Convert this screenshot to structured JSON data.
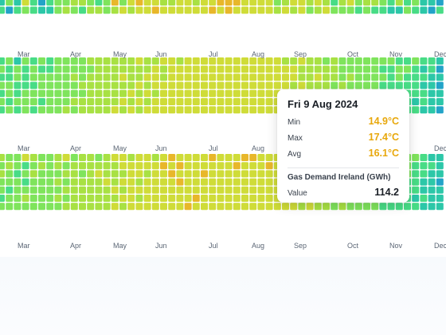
{
  "chart_data": {
    "type": "heatmap",
    "months": [
      "Mar",
      "Apr",
      "May",
      "Jun",
      "Jul",
      "Aug",
      "Sep",
      "Oct",
      "Nov",
      "Dec"
    ],
    "bands": [
      {
        "label_row": 0,
        "values": [
          [
            2,
            4,
            2,
            6,
            3,
            1,
            3,
            4,
            4,
            5,
            5,
            4,
            3,
            4,
            7,
            4,
            6,
            7,
            6,
            6,
            5,
            5,
            6,
            6,
            5,
            6,
            6,
            7,
            7,
            7,
            6,
            6,
            6,
            6,
            4,
            5,
            6,
            6,
            5,
            6,
            5,
            3,
            5,
            6,
            4,
            5,
            5,
            4,
            3,
            5,
            3,
            4,
            2,
            2,
            1
          ],
          [
            3,
            1,
            3,
            4,
            3,
            2,
            2,
            4,
            5,
            4,
            3,
            5,
            5,
            4,
            5,
            6,
            5,
            6,
            6,
            7,
            6,
            6,
            6,
            6,
            6,
            6,
            7,
            6,
            7,
            6,
            6,
            6,
            6,
            6,
            5,
            6,
            5,
            6,
            4,
            5,
            6,
            4,
            4,
            4,
            3,
            4,
            3,
            3,
            2,
            2,
            4,
            3,
            2,
            1,
            3
          ]
        ]
      },
      {
        "label_row": 1,
        "values": [
          [
            3,
            4,
            2,
            4,
            3,
            4,
            3,
            4,
            4,
            4,
            4,
            5,
            5,
            5,
            5,
            5,
            5,
            6,
            5,
            5,
            6,
            6,
            5,
            6,
            6,
            6,
            6,
            6,
            6,
            6,
            6,
            6,
            6,
            6,
            6,
            5,
            5,
            6,
            5,
            5,
            4,
            5,
            4,
            4,
            4,
            4,
            4,
            4,
            4,
            3,
            3,
            4,
            3,
            3,
            2
          ],
          [
            4,
            3,
            4,
            3,
            4,
            3,
            3,
            4,
            4,
            4,
            4,
            4,
            5,
            5,
            5,
            5,
            5,
            5,
            5,
            6,
            5,
            6,
            6,
            6,
            6,
            6,
            6,
            6,
            6,
            6,
            6,
            6,
            6,
            6,
            6,
            6,
            6,
            5,
            5,
            5,
            5,
            5,
            4,
            4,
            4,
            4,
            4,
            3,
            3,
            4,
            4,
            3,
            2,
            3,
            1
          ],
          [
            3,
            3,
            4,
            3,
            4,
            4,
            4,
            4,
            4,
            5,
            4,
            5,
            5,
            5,
            5,
            6,
            5,
            5,
            6,
            6,
            5,
            6,
            6,
            6,
            6,
            6,
            6,
            6,
            6,
            6,
            6,
            6,
            6,
            6,
            6,
            6,
            6,
            5,
            5,
            6,
            5,
            5,
            4,
            5,
            4,
            4,
            4,
            4,
            3,
            4,
            3,
            3,
            3,
            2,
            2
          ],
          [
            4,
            4,
            3,
            3,
            3,
            4,
            4,
            4,
            4,
            4,
            5,
            5,
            5,
            5,
            5,
            5,
            5,
            6,
            5,
            6,
            6,
            6,
            6,
            6,
            6,
            6,
            6,
            6,
            6,
            6,
            6,
            6,
            6,
            6,
            6,
            6,
            5,
            6,
            5,
            5,
            5,
            4,
            5,
            4,
            4,
            4,
            4,
            3,
            3,
            3,
            3,
            3,
            2,
            2,
            1
          ],
          [
            3,
            4,
            3,
            4,
            4,
            4,
            4,
            4,
            4,
            4,
            4,
            5,
            5,
            5,
            5,
            5,
            6,
            5,
            6,
            5,
            6,
            6,
            6,
            6,
            6,
            6,
            6,
            6,
            6,
            6,
            6,
            6,
            6,
            6,
            6,
            6,
            6,
            5,
            5,
            5,
            5,
            5,
            4,
            4,
            4,
            4,
            3,
            4,
            3,
            3,
            3,
            3,
            3,
            2,
            2
          ],
          [
            4,
            3,
            4,
            4,
            4,
            3,
            4,
            4,
            4,
            5,
            5,
            5,
            5,
            5,
            5,
            6,
            5,
            6,
            5,
            6,
            6,
            6,
            6,
            6,
            6,
            6,
            6,
            6,
            6,
            6,
            6,
            6,
            6,
            6,
            6,
            6,
            5,
            6,
            5,
            5,
            5,
            4,
            5,
            4,
            4,
            4,
            4,
            3,
            4,
            3,
            3,
            2,
            3,
            2,
            2
          ],
          [
            3,
            4,
            3,
            4,
            3,
            4,
            4,
            4,
            5,
            4,
            5,
            5,
            5,
            5,
            6,
            5,
            6,
            5,
            6,
            6,
            6,
            6,
            6,
            6,
            6,
            6,
            6,
            6,
            6,
            6,
            6,
            6,
            6,
            6,
            6,
            6,
            6,
            5,
            5,
            5,
            5,
            5,
            4,
            4,
            4,
            4,
            3,
            3,
            3,
            4,
            3,
            3,
            2,
            2,
            1
          ]
        ]
      },
      {
        "label_row": 2,
        "values": [
          [
            5,
            4,
            4,
            6,
            5,
            4,
            4,
            5,
            6,
            4,
            5,
            5,
            4,
            5,
            6,
            6,
            5,
            6,
            6,
            5,
            6,
            7,
            6,
            6,
            6,
            6,
            7,
            6,
            6,
            6,
            7,
            7,
            6,
            6,
            6,
            6,
            6,
            6,
            6,
            5,
            6,
            5,
            5,
            5,
            5,
            4,
            5,
            4,
            4,
            3,
            4,
            4,
            3,
            2,
            2
          ],
          [
            4,
            5,
            4,
            3,
            4,
            5,
            4,
            5,
            4,
            5,
            5,
            5,
            5,
            5,
            5,
            6,
            6,
            6,
            6,
            6,
            7,
            6,
            7,
            6,
            6,
            6,
            6,
            6,
            6,
            7,
            6,
            6,
            6,
            7,
            6,
            6,
            6,
            6,
            5,
            6,
            5,
            5,
            5,
            4,
            5,
            4,
            5,
            4,
            4,
            4,
            4,
            3,
            3,
            3,
            2
          ],
          [
            5,
            4,
            3,
            4,
            5,
            4,
            4,
            4,
            5,
            5,
            4,
            5,
            6,
            5,
            5,
            5,
            6,
            6,
            5,
            6,
            6,
            7,
            6,
            6,
            6,
            7,
            6,
            6,
            6,
            6,
            6,
            6,
            6,
            6,
            6,
            6,
            6,
            5,
            6,
            5,
            5,
            5,
            5,
            4,
            4,
            4,
            4,
            4,
            4,
            3,
            4,
            3,
            3,
            2,
            2
          ],
          [
            4,
            4,
            4,
            3,
            4,
            4,
            4,
            5,
            4,
            5,
            5,
            5,
            5,
            6,
            5,
            6,
            6,
            5,
            6,
            6,
            6,
            6,
            7,
            6,
            6,
            6,
            6,
            6,
            6,
            6,
            6,
            6,
            6,
            6,
            6,
            6,
            6,
            6,
            5,
            5,
            5,
            5,
            4,
            5,
            4,
            4,
            4,
            3,
            4,
            4,
            3,
            3,
            2,
            2,
            1
          ],
          [
            4,
            3,
            4,
            4,
            4,
            4,
            4,
            4,
            5,
            5,
            5,
            5,
            5,
            5,
            6,
            5,
            6,
            6,
            6,
            6,
            6,
            6,
            6,
            6,
            6,
            6,
            6,
            6,
            6,
            6,
            6,
            6,
            6,
            6,
            6,
            6,
            5,
            6,
            5,
            5,
            5,
            5,
            4,
            4,
            4,
            4,
            4,
            4,
            3,
            3,
            3,
            3,
            2,
            2,
            2
          ],
          [
            3,
            4,
            4,
            5,
            4,
            4,
            4,
            5,
            4,
            5,
            5,
            5,
            5,
            5,
            5,
            6,
            6,
            5,
            6,
            6,
            6,
            6,
            6,
            6,
            7,
            6,
            6,
            6,
            6,
            6,
            6,
            6,
            6,
            6,
            6,
            6,
            6,
            5,
            5,
            5,
            5,
            5,
            4,
            5,
            4,
            4,
            3,
            4,
            4,
            3,
            3,
            2,
            3,
            2,
            2
          ],
          [
            4,
            4,
            4,
            4,
            4,
            4,
            4,
            4,
            5,
            5,
            5,
            5,
            5,
            5,
            6,
            5,
            6,
            6,
            6,
            6,
            6,
            6,
            6,
            7,
            6,
            6,
            6,
            6,
            6,
            6,
            6,
            6,
            6,
            6,
            6,
            6,
            6,
            5,
            6,
            5,
            5,
            4,
            5,
            4,
            4,
            4,
            4,
            3,
            3,
            3,
            3,
            3,
            2,
            2,
            2
          ]
        ]
      }
    ],
    "scale": {
      "min": 0,
      "max": 8
    },
    "colors": [
      "#1f8ecb",
      "#22a3c8",
      "#2cc7a8",
      "#48dc86",
      "#7fe45c",
      "#a8e143",
      "#cfdc38",
      "#e8b72a",
      "#ef9a22"
    ],
    "selected": {
      "band": 1,
      "row": 2,
      "col": 59
    }
  },
  "tooltip": {
    "date": "Fri 9 Aug 2024",
    "min_label": "Min",
    "min_value": "14.9°C",
    "max_label": "Max",
    "max_value": "17.4°C",
    "avg_label": "Avg",
    "avg_value": "16.1°C",
    "series_name": "Gas Demand Ireland (GWh)",
    "value_label": "Value",
    "value": "114.2",
    "accent_color": "#e8a80c"
  }
}
